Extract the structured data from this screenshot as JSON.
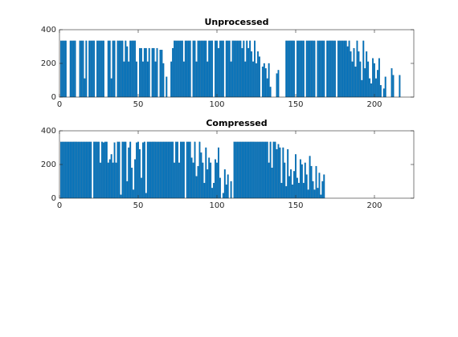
{
  "chart_data": [
    {
      "type": "bar",
      "title": "Unprocessed",
      "color": "#0072bd",
      "x": [
        1,
        2,
        3,
        4,
        5,
        6,
        7,
        8,
        9,
        10,
        11,
        12,
        13,
        14,
        15,
        16,
        17,
        18,
        19,
        20,
        21,
        22,
        23,
        24,
        25,
        26,
        27,
        28,
        29,
        30,
        31,
        32,
        33,
        34,
        35,
        36,
        37,
        38,
        39,
        40,
        41,
        42,
        43,
        44,
        45,
        46,
        47,
        48,
        49,
        50,
        51,
        52,
        53,
        54,
        55,
        56,
        57,
        58,
        59,
        60,
        61,
        62,
        63,
        64,
        65,
        66,
        67,
        68,
        69,
        70,
        71,
        72,
        73,
        74,
        75,
        76,
        77,
        78,
        79,
        80,
        81,
        82,
        83,
        84,
        85,
        86,
        87,
        88,
        89,
        90,
        91,
        92,
        93,
        94,
        95,
        96,
        97,
        98,
        99,
        100,
        101,
        102,
        103,
        104,
        105,
        106,
        107,
        108,
        109,
        110,
        111,
        112,
        113,
        114,
        115,
        116,
        117,
        118,
        119,
        120,
        121,
        122,
        123,
        124,
        125,
        126,
        127,
        128,
        129,
        130,
        131,
        132,
        133,
        134,
        135,
        136,
        137,
        138,
        139,
        140,
        141,
        142,
        143,
        144,
        145,
        146,
        147,
        148,
        149,
        150,
        151,
        152,
        153,
        154,
        155,
        156,
        157,
        158,
        159,
        160,
        161,
        162,
        163,
        164,
        165,
        166,
        167,
        168,
        169,
        170,
        171,
        172,
        173,
        174,
        175,
        176,
        177,
        178,
        179,
        180,
        181,
        182,
        183,
        184,
        185,
        186,
        187,
        188,
        189,
        190,
        191,
        192,
        193,
        194,
        195,
        196,
        197,
        198,
        199,
        200,
        201,
        202,
        203,
        204,
        205,
        206,
        207,
        208,
        209,
        210,
        211,
        212,
        213,
        214,
        215,
        216
      ],
      "values": [
        334,
        334,
        334,
        334,
        0,
        0,
        334,
        334,
        334,
        334,
        0,
        0,
        334,
        334,
        334,
        110,
        334,
        0,
        334,
        334,
        334,
        334,
        0,
        334,
        334,
        334,
        334,
        334,
        0,
        0,
        334,
        334,
        110,
        334,
        334,
        0,
        334,
        334,
        334,
        334,
        210,
        334,
        300,
        210,
        334,
        334,
        334,
        334,
        210,
        0,
        290,
        290,
        210,
        290,
        290,
        210,
        290,
        0,
        290,
        290,
        210,
        290,
        0,
        280,
        280,
        200,
        0,
        120,
        0,
        0,
        210,
        290,
        334,
        334,
        334,
        334,
        334,
        334,
        210,
        334,
        334,
        334,
        334,
        0,
        334,
        334,
        210,
        334,
        334,
        334,
        334,
        334,
        334,
        210,
        334,
        334,
        334,
        0,
        334,
        334,
        290,
        334,
        334,
        334,
        0,
        334,
        334,
        334,
        210,
        334,
        334,
        334,
        334,
        334,
        334,
        290,
        334,
        210,
        334,
        290,
        334,
        270,
        210,
        334,
        200,
        270,
        240,
        0,
        180,
        200,
        170,
        110,
        200,
        60,
        0,
        0,
        0,
        140,
        160,
        0,
        0,
        0,
        0,
        334,
        334,
        334,
        334,
        334,
        334,
        0,
        334,
        334,
        334,
        334,
        334,
        0,
        334,
        334,
        334,
        334,
        334,
        334,
        0,
        334,
        334,
        334,
        334,
        334,
        0,
        334,
        334,
        334,
        334,
        334,
        334,
        0,
        334,
        334,
        334,
        334,
        334,
        334,
        300,
        334,
        270,
        210,
        290,
        180,
        334,
        270,
        210,
        100,
        334,
        170,
        270,
        210,
        110,
        80,
        230,
        200,
        110,
        160,
        230,
        70,
        0,
        50,
        120,
        0,
        0,
        0,
        170,
        130,
        0,
        0,
        0,
        130
      ],
      "xlim": [
        0,
        225
      ],
      "ylim": [
        0,
        400
      ],
      "xticks": [
        0,
        50,
        100,
        150,
        200
      ],
      "yticks": [
        0,
        200,
        400
      ]
    },
    {
      "type": "bar",
      "title": "Compressed",
      "color": "#0072bd",
      "x": [
        1,
        2,
        3,
        4,
        5,
        6,
        7,
        8,
        9,
        10,
        11,
        12,
        13,
        14,
        15,
        16,
        17,
        18,
        19,
        20,
        21,
        22,
        23,
        24,
        25,
        26,
        27,
        28,
        29,
        30,
        31,
        32,
        33,
        34,
        35,
        36,
        37,
        38,
        39,
        40,
        41,
        42,
        43,
        44,
        45,
        46,
        47,
        48,
        49,
        50,
        51,
        52,
        53,
        54,
        55,
        56,
        57,
        58,
        59,
        60,
        61,
        62,
        63,
        64,
        65,
        66,
        67,
        68,
        69,
        70,
        71,
        72,
        73,
        74,
        75,
        76,
        77,
        78,
        79,
        80,
        81,
        82,
        83,
        84,
        85,
        86,
        87,
        88,
        89,
        90,
        91,
        92,
        93,
        94,
        95,
        96,
        97,
        98,
        99,
        100,
        101,
        102,
        103,
        104,
        105,
        106,
        107,
        108,
        109,
        110,
        111,
        112,
        113,
        114,
        115,
        116,
        117,
        118,
        119,
        120,
        121,
        122,
        123,
        124,
        125,
        126,
        127,
        128,
        129,
        130,
        131,
        132,
        133,
        134,
        135,
        136,
        137,
        138,
        139,
        140,
        141,
        142,
        143,
        144,
        145,
        146,
        147,
        148,
        149,
        150,
        151,
        152,
        153,
        154,
        155,
        156,
        157,
        158,
        159,
        160,
        161,
        162,
        163,
        164,
        165,
        166,
        167,
        168
      ],
      "values": [
        334,
        334,
        334,
        334,
        334,
        334,
        334,
        334,
        334,
        334,
        334,
        334,
        334,
        334,
        334,
        334,
        334,
        334,
        334,
        334,
        0,
        334,
        334,
        334,
        334,
        210,
        334,
        330,
        334,
        334,
        210,
        230,
        260,
        210,
        330,
        210,
        334,
        334,
        20,
        334,
        334,
        334,
        100,
        300,
        334,
        180,
        50,
        230,
        330,
        334,
        290,
        120,
        330,
        334,
        30,
        334,
        334,
        334,
        334,
        334,
        334,
        334,
        334,
        334,
        334,
        334,
        334,
        334,
        334,
        334,
        334,
        334,
        210,
        334,
        334,
        210,
        334,
        334,
        334,
        0,
        334,
        334,
        334,
        240,
        210,
        334,
        130,
        190,
        334,
        270,
        210,
        90,
        300,
        170,
        240,
        210,
        60,
        90,
        230,
        210,
        300,
        120,
        0,
        30,
        170,
        80,
        140,
        0,
        100,
        0,
        334,
        334,
        334,
        334,
        334,
        334,
        334,
        334,
        334,
        334,
        334,
        334,
        334,
        334,
        334,
        334,
        334,
        334,
        334,
        334,
        334,
        334,
        210,
        334,
        180,
        334,
        334,
        290,
        320,
        300,
        90,
        300,
        210,
        70,
        290,
        130,
        170,
        80,
        160,
        260,
        120,
        90,
        230,
        200,
        90,
        210,
        140,
        50,
        250,
        190,
        100,
        50,
        190,
        60,
        150,
        20,
        100,
        140
      ],
      "xlim": [
        0,
        225
      ],
      "ylim": [
        0,
        400
      ],
      "xticks": [
        0,
        50,
        100,
        150,
        200
      ],
      "yticks": [
        0,
        200,
        400
      ]
    }
  ]
}
